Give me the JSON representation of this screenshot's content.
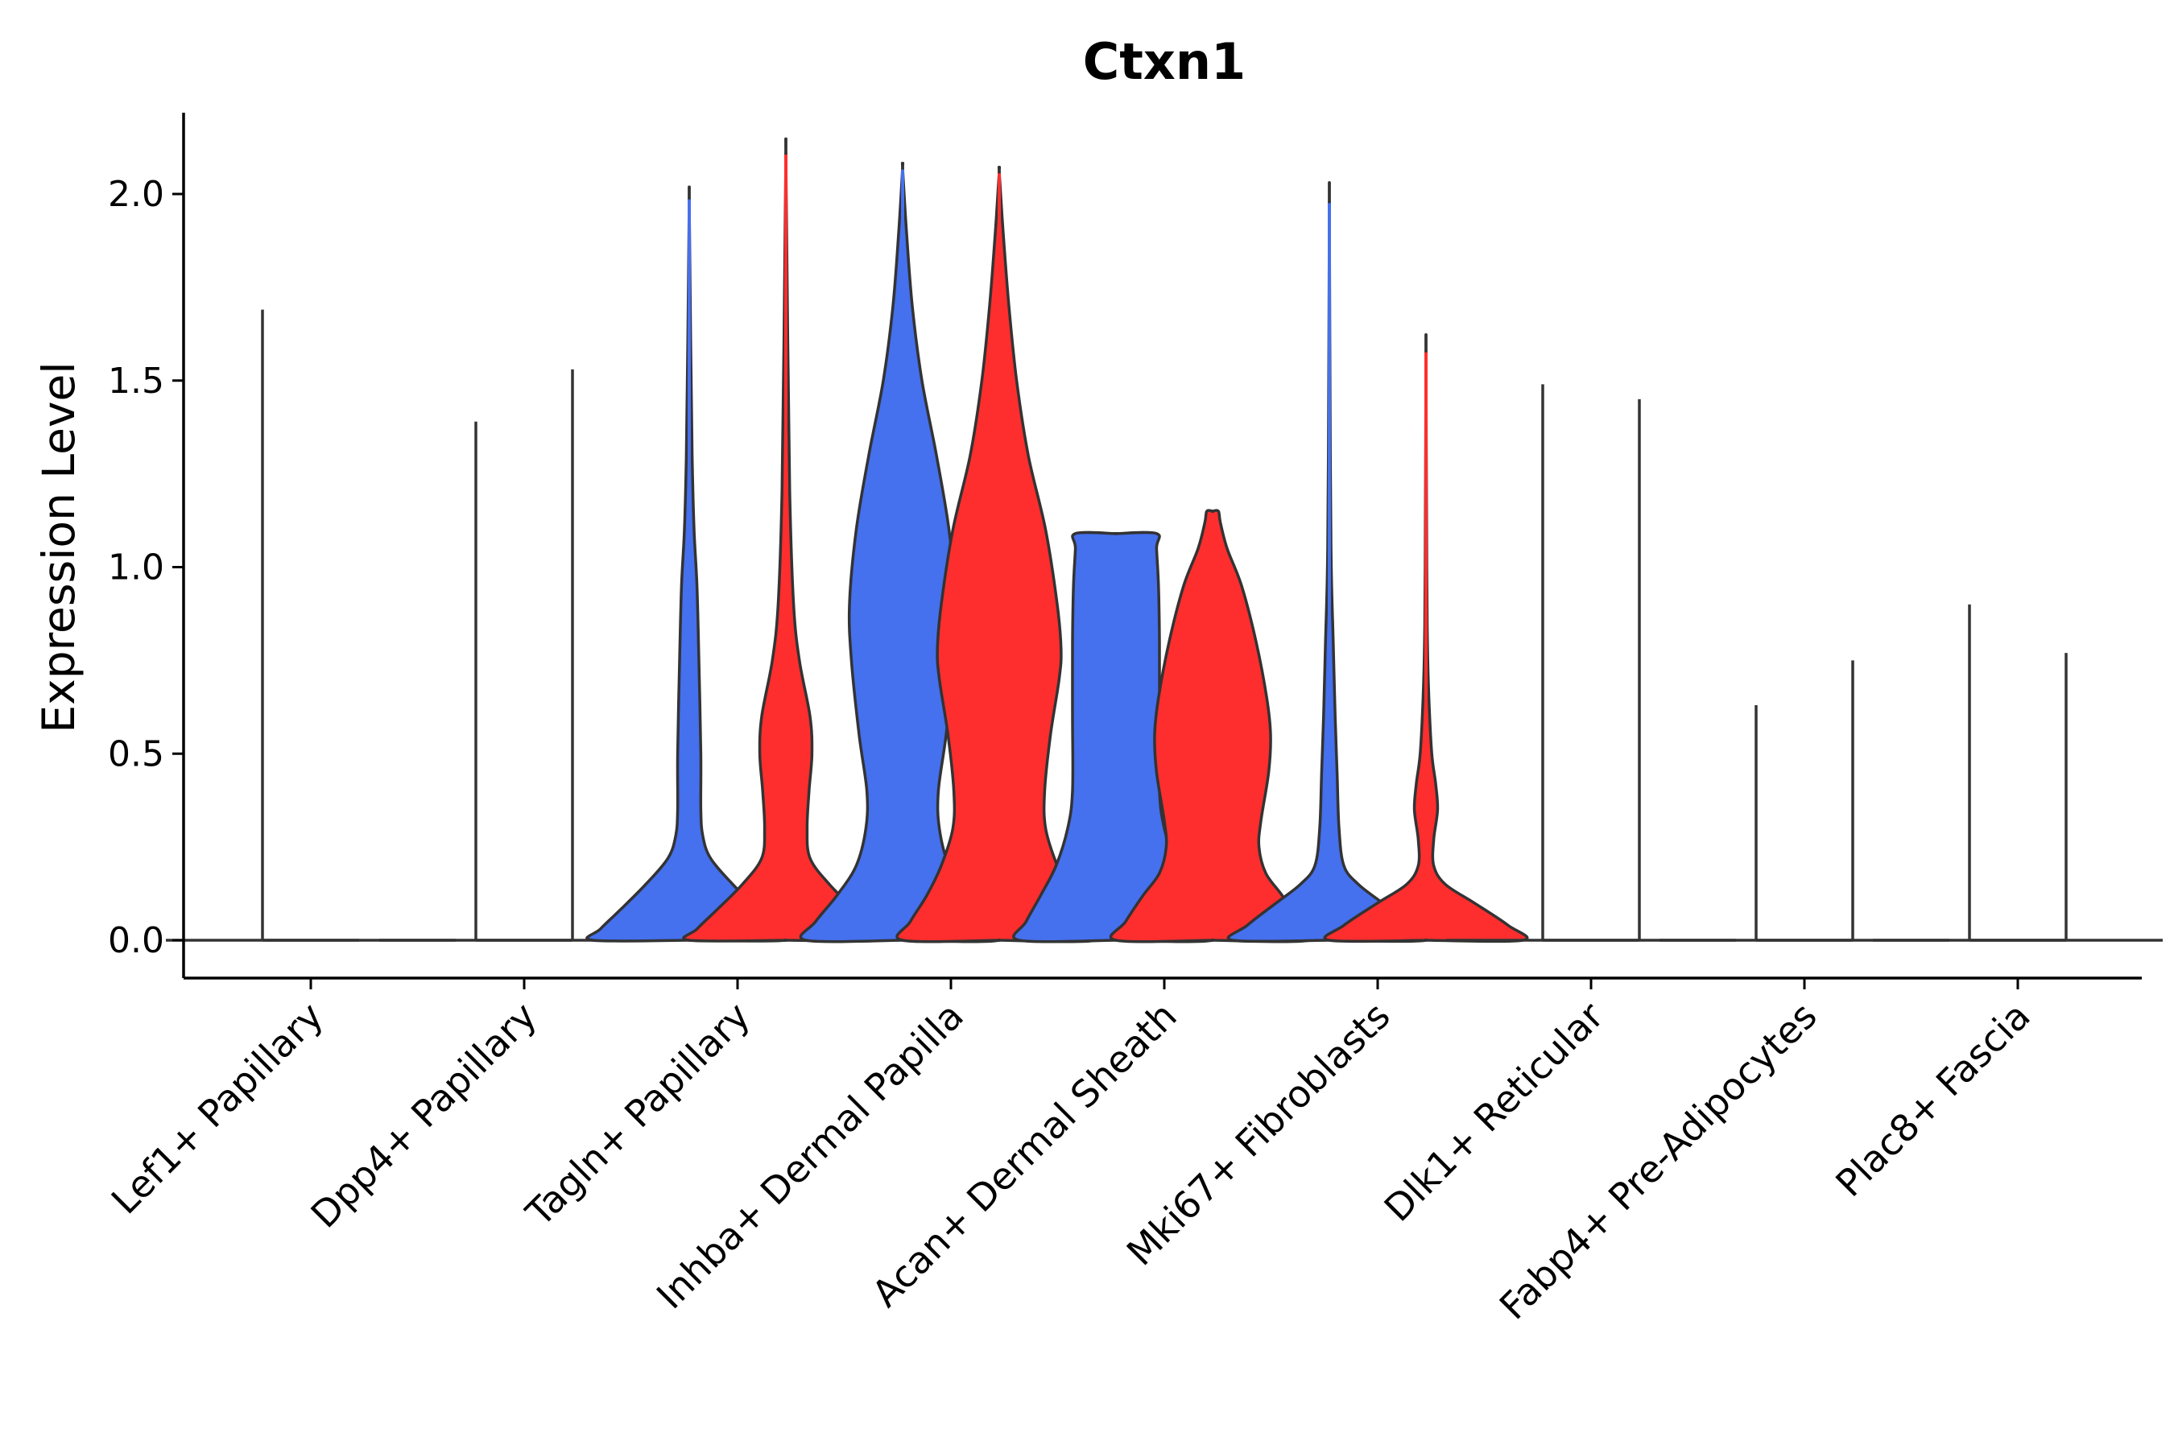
{
  "chart_data": {
    "type": "violin",
    "title": "Ctxn1",
    "xlabel": "",
    "ylabel": "Expression Level",
    "ylim": [
      -0.105,
      2.22
    ],
    "yticks": [
      "0.0",
      "0.5",
      "1.0",
      "1.5",
      "2.0"
    ],
    "legend": "none",
    "split_colors": {
      "left": "#4570EE",
      "right": "#FF2E2E",
      "empty": "#FFFFFF"
    },
    "categories": [
      "Lef1+ Papillary",
      "Dpp4+ Papillary",
      "Tagln+ Papillary",
      "Inhba+ Dermal Papilla",
      "Acan+ Dermal Sheath",
      "Mki67+ Fibroblasts",
      "Dlk1+ Reticular",
      "Fabp4+ Pre-Adipocytes",
      "Plac8+ Fascia"
    ],
    "violins": [
      {
        "category": "Lef1+ Papillary",
        "left": {
          "max": 1.69,
          "color": "empty",
          "shape": [
            [
              0,
              1
            ],
            [
              0.01,
              0.03
            ],
            [
              0.05,
              0
            ],
            [
              1.69,
              0
            ]
          ]
        },
        "right": {
          "max": 0.0,
          "color": "empty",
          "shape": [
            [
              0,
              1
            ]
          ]
        }
      },
      {
        "category": "Dpp4+ Papillary",
        "left": {
          "max": 1.39,
          "color": "empty",
          "shape": [
            [
              0,
              1
            ],
            [
              0.01,
              0.03
            ],
            [
              0.05,
              0
            ],
            [
              1.39,
              0
            ]
          ]
        },
        "right": {
          "max": 1.53,
          "color": "empty",
          "shape": [
            [
              0,
              1
            ],
            [
              0.01,
              0.03
            ],
            [
              0.05,
              0
            ],
            [
              1.53,
              0
            ]
          ]
        }
      },
      {
        "category": "Tagln+ Papillary",
        "left": {
          "max": 1.99,
          "color": "left",
          "shape": [
            [
              0,
              1
            ],
            [
              0.03,
              0.92
            ],
            [
              0.08,
              0.72
            ],
            [
              0.15,
              0.45
            ],
            [
              0.22,
              0.22
            ],
            [
              0.28,
              0.14
            ],
            [
              0.35,
              0.12
            ],
            [
              0.5,
              0.12
            ],
            [
              0.75,
              0.1
            ],
            [
              0.95,
              0.08
            ],
            [
              1.1,
              0.05
            ],
            [
              1.3,
              0.03
            ],
            [
              1.6,
              0.015
            ],
            [
              1.99,
              0
            ]
          ]
        },
        "right": {
          "max": 2.11,
          "color": "right",
          "shape": [
            [
              0,
              1
            ],
            [
              0.03,
              0.92
            ],
            [
              0.08,
              0.72
            ],
            [
              0.15,
              0.45
            ],
            [
              0.22,
              0.25
            ],
            [
              0.3,
              0.22
            ],
            [
              0.4,
              0.24
            ],
            [
              0.5,
              0.27
            ],
            [
              0.6,
              0.25
            ],
            [
              0.75,
              0.14
            ],
            [
              0.9,
              0.08
            ],
            [
              1.2,
              0.04
            ],
            [
              1.6,
              0.02
            ],
            [
              2.11,
              0
            ]
          ]
        }
      },
      {
        "category": "Inhba+ Dermal Papilla",
        "left": {
          "max": 2.07,
          "color": "left",
          "shape": [
            [
              0,
              1
            ],
            [
              0.05,
              0.9
            ],
            [
              0.12,
              0.68
            ],
            [
              0.2,
              0.48
            ],
            [
              0.3,
              0.38
            ],
            [
              0.4,
              0.37
            ],
            [
              0.55,
              0.45
            ],
            [
              0.75,
              0.53
            ],
            [
              0.9,
              0.55
            ],
            [
              1.1,
              0.48
            ],
            [
              1.3,
              0.35
            ],
            [
              1.5,
              0.2
            ],
            [
              1.7,
              0.1
            ],
            [
              1.9,
              0.04
            ],
            [
              2.07,
              0
            ]
          ]
        },
        "right": {
          "max": 2.06,
          "color": "right",
          "shape": [
            [
              0,
              1
            ],
            [
              0.05,
              0.92
            ],
            [
              0.12,
              0.75
            ],
            [
              0.2,
              0.6
            ],
            [
              0.3,
              0.48
            ],
            [
              0.4,
              0.47
            ],
            [
              0.55,
              0.53
            ],
            [
              0.7,
              0.62
            ],
            [
              0.78,
              0.64
            ],
            [
              0.9,
              0.6
            ],
            [
              1.1,
              0.48
            ],
            [
              1.3,
              0.3
            ],
            [
              1.5,
              0.18
            ],
            [
              1.7,
              0.1
            ],
            [
              1.9,
              0.04
            ],
            [
              2.06,
              0
            ]
          ]
        }
      },
      {
        "category": "Acan+ Dermal Sheath",
        "left": {
          "max": 1.09,
          "color": "left",
          "shape": [
            [
              0,
              1
            ],
            [
              0.05,
              0.93
            ],
            [
              0.12,
              0.78
            ],
            [
              0.2,
              0.62
            ],
            [
              0.3,
              0.5
            ],
            [
              0.4,
              0.45
            ],
            [
              0.6,
              0.45
            ],
            [
              0.8,
              0.45
            ],
            [
              0.95,
              0.44
            ],
            [
              1.05,
              0.42
            ],
            [
              1.09,
              0.42
            ]
          ]
        },
        "right": {
          "max": 1.15,
          "color": "right",
          "shape": [
            [
              0,
              1
            ],
            [
              0.05,
              0.9
            ],
            [
              0.12,
              0.72
            ],
            [
              0.18,
              0.55
            ],
            [
              0.25,
              0.48
            ],
            [
              0.32,
              0.5
            ],
            [
              0.45,
              0.58
            ],
            [
              0.55,
              0.6
            ],
            [
              0.65,
              0.56
            ],
            [
              0.8,
              0.45
            ],
            [
              0.95,
              0.3
            ],
            [
              1.05,
              0.15
            ],
            [
              1.12,
              0.08
            ],
            [
              1.15,
              0.06
            ]
          ]
        }
      },
      {
        "category": "Mki67+ Fibroblasts",
        "left": {
          "max": 1.98,
          "color": "left",
          "shape": [
            [
              0,
              1
            ],
            [
              0.04,
              0.85
            ],
            [
              0.1,
              0.55
            ],
            [
              0.15,
              0.3
            ],
            [
              0.2,
              0.15
            ],
            [
              0.3,
              0.1
            ],
            [
              0.45,
              0.08
            ],
            [
              0.6,
              0.06
            ],
            [
              0.8,
              0.04
            ],
            [
              1.0,
              0.02
            ],
            [
              1.3,
              0.01
            ],
            [
              1.98,
              0
            ]
          ]
        },
        "right": {
          "max": 1.58,
          "color": "right",
          "shape": [
            [
              0,
              1
            ],
            [
              0.04,
              0.85
            ],
            [
              0.1,
              0.5
            ],
            [
              0.15,
              0.2
            ],
            [
              0.2,
              0.08
            ],
            [
              0.27,
              0.08
            ],
            [
              0.35,
              0.12
            ],
            [
              0.42,
              0.1
            ],
            [
              0.5,
              0.06
            ],
            [
              0.65,
              0.03
            ],
            [
              0.8,
              0.015
            ],
            [
              1.0,
              0.008
            ],
            [
              1.58,
              0
            ]
          ]
        }
      },
      {
        "category": "Dlk1+ Reticular",
        "left": {
          "max": 1.49,
          "color": "empty",
          "shape": [
            [
              0,
              1
            ],
            [
              0.01,
              0.03
            ],
            [
              0.05,
              0
            ],
            [
              1.49,
              0
            ]
          ]
        },
        "right": {
          "max": 1.45,
          "color": "empty",
          "shape": [
            [
              0,
              1
            ],
            [
              0.01,
              0.03
            ],
            [
              0.05,
              0
            ],
            [
              1.45,
              0
            ]
          ]
        }
      },
      {
        "category": "Fabp4+ Pre-Adipocytes",
        "left": {
          "max": 0.63,
          "color": "empty",
          "shape": [
            [
              0,
              1
            ],
            [
              0.01,
              0.03
            ],
            [
              0.05,
              0
            ],
            [
              0.63,
              0
            ]
          ]
        },
        "right": {
          "max": 0.75,
          "color": "empty",
          "shape": [
            [
              0,
              1
            ],
            [
              0.01,
              0.03
            ],
            [
              0.05,
              0
            ],
            [
              0.75,
              0
            ]
          ]
        }
      },
      {
        "category": "Plac8+ Fascia",
        "left": {
          "max": 0.9,
          "color": "empty",
          "shape": [
            [
              0,
              1
            ],
            [
              0.01,
              0.03
            ],
            [
              0.05,
              0
            ],
            [
              0.9,
              0
            ]
          ]
        },
        "right": {
          "max": 0.77,
          "color": "empty",
          "shape": [
            [
              0,
              1
            ],
            [
              0.01,
              0.03
            ],
            [
              0.05,
              0
            ],
            [
              0.77,
              0
            ]
          ]
        }
      }
    ]
  }
}
